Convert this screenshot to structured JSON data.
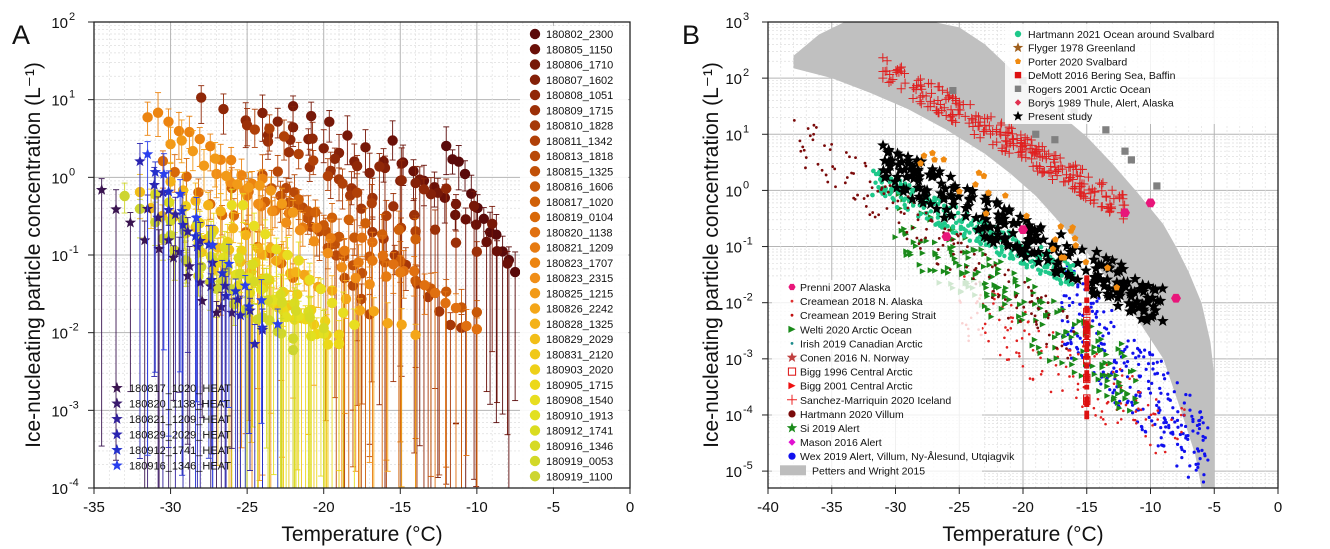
{
  "chart_data": [
    {
      "type": "scatter",
      "panel_label": "A",
      "xlabel": "Temperature (°C)",
      "ylabel": "Ice-nucleating particle concentration (L⁻¹)",
      "xlim": [
        -35,
        0
      ],
      "ylim": [
        0.0001,
        100
      ],
      "y_scale": "log",
      "grid": true,
      "x_ticks": [
        "-35",
        "-30",
        "-25",
        "-20",
        "-15",
        "-10",
        "-5",
        "0"
      ],
      "y_ticks": [
        {
          "base": "10",
          "exp": "2",
          "value": 100
        },
        {
          "base": "10",
          "exp": "1",
          "value": 10
        },
        {
          "base": "10",
          "exp": "0",
          "value": 1
        },
        {
          "base": "10",
          "exp": "-1",
          "value": 0.1
        },
        {
          "base": "10",
          "exp": "-2",
          "value": 0.01
        },
        {
          "base": "10",
          "exp": "-3",
          "value": 0.001
        },
        {
          "base": "10",
          "exp": "-4",
          "value": 0.0001
        }
      ],
      "legend_placement": "right",
      "series": [
        {
          "name": "180802_2300",
          "color": "#5a0a0a",
          "t0": -12.0,
          "t1": -7.5,
          "c0": 3.0,
          "c1": 0.05
        },
        {
          "name": "180805_1150",
          "color": "#6a1008",
          "t0": -15.5,
          "t1": -8.0,
          "c0": 2.5,
          "c1": 0.08
        },
        {
          "name": "180806_1710",
          "color": "#771808",
          "t0": -22.0,
          "t1": -9.0,
          "c0": 8.0,
          "c1": 0.3
        },
        {
          "name": "180807_1602",
          "color": "#842008",
          "t0": -24.0,
          "t1": -13.0,
          "c0": 6.0,
          "c1": 0.6
        },
        {
          "name": "180808_1051",
          "color": "#902808",
          "t0": -28.0,
          "t1": -12.0,
          "c0": 9.0,
          "c1": 0.6
        },
        {
          "name": "180809_1715",
          "color": "#9c3008",
          "t0": -25.0,
          "t1": -10.0,
          "c0": 4.0,
          "c1": 0.1
        },
        {
          "name": "180810_1828",
          "color": "#a63808",
          "t0": -19.0,
          "t1": -11.0,
          "c0": 0.8,
          "c1": 0.01
        },
        {
          "name": "180811_1342",
          "color": "#b04008",
          "t0": -24.5,
          "t1": -14.0,
          "c0": 5.0,
          "c1": 0.2
        },
        {
          "name": "180813_1818",
          "color": "#b84808",
          "t0": -23.0,
          "t1": -17.0,
          "c0": 1.2,
          "c1": 0.02
        },
        {
          "name": "180815_1325",
          "color": "#c05008",
          "t0": -24.0,
          "t1": -17.5,
          "c0": 1.0,
          "c1": 0.06
        },
        {
          "name": "180816_1606",
          "color": "#c85808",
          "t0": -21.0,
          "t1": -10.0,
          "c0": 0.3,
          "c1": 0.02
        },
        {
          "name": "180817_1020",
          "color": "#d06008",
          "t0": -26.0,
          "t1": -14.0,
          "c0": 0.8,
          "c1": 0.15
        },
        {
          "name": "180819_0104",
          "color": "#d86808",
          "t0": -30.5,
          "t1": -22.0,
          "c0": 1.6,
          "c1": 0.06
        },
        {
          "name": "180820_1138",
          "color": "#e07010",
          "t0": -17.5,
          "t1": -10.0,
          "c0": 0.2,
          "c1": 0.01
        },
        {
          "name": "180821_1209",
          "color": "#e67a10",
          "t0": -25.0,
          "t1": -15.0,
          "c0": 0.6,
          "c1": 0.05
        },
        {
          "name": "180823_1707",
          "color": "#ec8410",
          "t0": -31.5,
          "t1": -24.0,
          "c0": 7.0,
          "c1": 0.8
        },
        {
          "name": "180823_2315",
          "color": "#f08e18",
          "t0": -27.0,
          "t1": -17.0,
          "c0": 1.0,
          "c1": 0.04
        },
        {
          "name": "180825_1215",
          "color": "#f29a18",
          "t0": -30.0,
          "t1": -22.0,
          "c0": 3.0,
          "c1": 0.4
        },
        {
          "name": "180826_2242",
          "color": "#f4a618",
          "t0": -24.0,
          "t1": -14.0,
          "c0": 0.1,
          "c1": 0.01
        },
        {
          "name": "180828_1325",
          "color": "#f4b218",
          "t0": -30.0,
          "t1": -21.0,
          "c0": 1.0,
          "c1": 0.05
        },
        {
          "name": "180829_2029",
          "color": "#f2be18",
          "t0": -32.0,
          "t1": -24.0,
          "c0": 0.6,
          "c1": 0.05
        },
        {
          "name": "180831_2120",
          "color": "#f0c818",
          "t0": -28.0,
          "t1": -19.0,
          "c0": 0.1,
          "c1": 0.008
        },
        {
          "name": "180903_2020",
          "color": "#eed018",
          "t0": -29.0,
          "t1": -19.0,
          "c0": 0.35,
          "c1": 0.01
        },
        {
          "name": "180905_1715",
          "color": "#ecd818",
          "t0": -27.0,
          "t1": -19.0,
          "c0": 0.08,
          "c1": 0.006
        },
        {
          "name": "180908_1540",
          "color": "#e8de20",
          "t0": -26.0,
          "t1": -18.0,
          "c0": 0.5,
          "c1": 0.015
        },
        {
          "name": "180910_1913",
          "color": "#e2e020",
          "t0": -29.0,
          "t1": -20.0,
          "c0": 0.2,
          "c1": 0.008
        },
        {
          "name": "180912_1741",
          "color": "#dadc20",
          "t0": -31.0,
          "t1": -21.0,
          "c0": 0.6,
          "c1": 0.02
        },
        {
          "name": "180916_1346",
          "color": "#d6da24",
          "t0": -30.0,
          "t1": -20.0,
          "c0": 0.25,
          "c1": 0.01
        },
        {
          "name": "180919_0053",
          "color": "#d2d828",
          "t0": -30.5,
          "t1": -22.0,
          "c0": 0.15,
          "c1": 0.007
        },
        {
          "name": "180919_1100",
          "color": "#cdd530",
          "t0": -33.0,
          "t1": -22.0,
          "c0": 0.5,
          "c1": 0.006
        }
      ],
      "heat_series": [
        {
          "name": "180817_1020_HEAT",
          "color": "#3a1450",
          "t0": -34.5,
          "t1": -27.0,
          "c0": 0.7,
          "c1": 0.02
        },
        {
          "name": "180820_1138_HEAT",
          "color": "#3a1a6e",
          "t0": -31.5,
          "t1": -26.0,
          "c0": 0.4,
          "c1": 0.015
        },
        {
          "name": "180821_1209_HEAT",
          "color": "#30209a",
          "t0": -30.5,
          "t1": -24.0,
          "c0": 0.6,
          "c1": 0.01
        },
        {
          "name": "180829_2029_HEAT",
          "color": "#2a24b0",
          "t0": -32.0,
          "t1": -24.5,
          "c0": 1.5,
          "c1": 0.008
        },
        {
          "name": "180912_1741_HEAT",
          "color": "#2430cc",
          "t0": -31.0,
          "t1": -24.0,
          "c0": 1.3,
          "c1": 0.01
        },
        {
          "name": "180916_1346_HEAT",
          "color": "#2a40ee",
          "t0": -31.5,
          "t1": -23.0,
          "c0": 2.0,
          "c1": 0.012
        }
      ]
    },
    {
      "type": "scatter",
      "panel_label": "B",
      "xlabel": "Temperature (°C)",
      "ylabel": "Ice-nucleating particle concentration (L⁻¹)",
      "xlim": [
        -40,
        0
      ],
      "ylim": [
        5e-06,
        1000
      ],
      "y_scale": "log",
      "grid": true,
      "x_ticks": [
        "-40",
        "-35",
        "-30",
        "-25",
        "-20",
        "-15",
        "-10",
        "-5",
        "0"
      ],
      "y_ticks": [
        {
          "base": "10",
          "exp": "3",
          "value": 1000
        },
        {
          "base": "10",
          "exp": "2",
          "value": 100
        },
        {
          "base": "10",
          "exp": "1",
          "value": 10
        },
        {
          "base": "10",
          "exp": "0",
          "value": 1
        },
        {
          "base": "10",
          "exp": "-1",
          "value": 0.1
        },
        {
          "base": "10",
          "exp": "-2",
          "value": 0.01
        },
        {
          "base": "10",
          "exp": "-3",
          "value": 0.001
        },
        {
          "base": "10",
          "exp": "-4",
          "value": 0.0001
        },
        {
          "base": "10",
          "exp": "-5",
          "value": 1e-05
        }
      ],
      "legend_top": [
        {
          "name": "Hartmann 2021 Ocean around Svalbard",
          "color": "#1ec88a",
          "marker": "dot"
        },
        {
          "name": "Flyger 1978 Greenland",
          "color": "#a0601e",
          "marker": "star"
        },
        {
          "name": "Porter 2020 Svalbard",
          "color": "#f08a10",
          "marker": "pentagon"
        },
        {
          "name": "DeMott 2016 Bering Sea, Baffin",
          "color": "#dd1010",
          "marker": "square"
        },
        {
          "name": "Rogers 2001 Arctic Ocean",
          "color": "#808080",
          "marker": "square"
        },
        {
          "name": "Borys 1989 Thule, Alert, Alaska",
          "color": "#e03050",
          "marker": "diamond-small"
        },
        {
          "name": "Present study",
          "color": "#000000",
          "marker": "star"
        }
      ],
      "legend_bottom": [
        {
          "name": "Prenni 2007 Alaska",
          "color": "#e8167a",
          "marker": "hexagon"
        },
        {
          "name": "Creamean 2018 N. Alaska",
          "color": "#e03030",
          "marker": "dot-small"
        },
        {
          "name": "Creamean 2019 Bering Strait",
          "color": "#c01010",
          "marker": "dot-small"
        },
        {
          "name": "Welti 2020 Arctic Ocean",
          "color": "#1a8a1a",
          "marker": "triangle"
        },
        {
          "name": "Irish 2019 Canadian Arctic",
          "color": "#1a8a8a",
          "marker": "dot-small"
        },
        {
          "name": "Conen 2016 N. Norway",
          "color": "#c04040",
          "marker": "star"
        },
        {
          "name": "Bigg 1996 Central Arctic",
          "color": "#dd1010",
          "marker": "square-open"
        },
        {
          "name": "Bigg 2001 Central Arctic",
          "color": "#ee1010",
          "marker": "triangle-right"
        },
        {
          "name": "Sanchez-Marriquin 2020 Iceland",
          "color": "#ee2020",
          "marker": "plus"
        },
        {
          "name": "Hartmann 2020 Villum",
          "color": "#7a0a0a",
          "marker": "dot"
        },
        {
          "name": "Si 2019 Alert",
          "color": "#1a8a1a",
          "marker": "star"
        },
        {
          "name": "Mason 2016 Alert",
          "color": "#e010d0",
          "marker": "diamond"
        },
        {
          "name": "Wex 2019 Alert, Villum, Ny-Ålesund, Utqiagvik",
          "color": "#1010ee",
          "marker": "dot"
        },
        {
          "name": "Petters and Wright 2015",
          "color": "#bdbdbd",
          "marker": "band"
        }
      ]
    }
  ]
}
